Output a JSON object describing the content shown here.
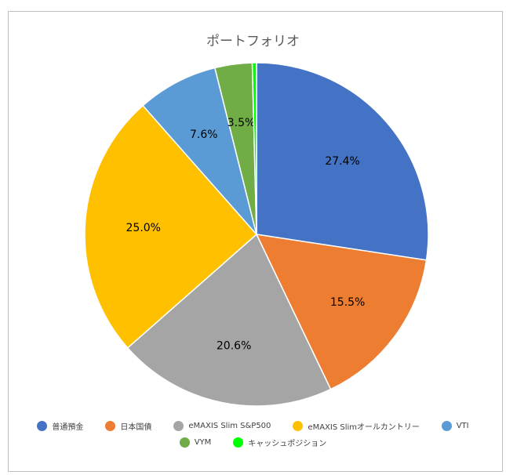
{
  "chart_data": {
    "type": "pie",
    "title": "ポートフォリオ",
    "start_angle_deg": 0,
    "direction": "clockwise",
    "legend_position": "bottom",
    "slices": [
      {
        "label": "普通預金",
        "value": 27.4,
        "display": "27.4%",
        "color": "#4472c4"
      },
      {
        "label": "日本国債",
        "value": 15.5,
        "display": "15.5%",
        "color": "#ed7d31"
      },
      {
        "label": "eMAXIS Slim S&P500",
        "value": 20.6,
        "display": "20.6%",
        "color": "#a5a5a5"
      },
      {
        "label": "eMAXIS Slimオールカントリー",
        "value": 25.0,
        "display": "25.0%",
        "color": "#ffc000"
      },
      {
        "label": "VTI",
        "value": 7.6,
        "display": "7.6%",
        "color": "#5b9bd5"
      },
      {
        "label": "VYM",
        "value": 3.5,
        "display": "3.5%",
        "color": "#70ad47"
      },
      {
        "label": "キャッシュポジション",
        "value": 0.4,
        "display": "",
        "color": "#00ff00"
      }
    ]
  }
}
